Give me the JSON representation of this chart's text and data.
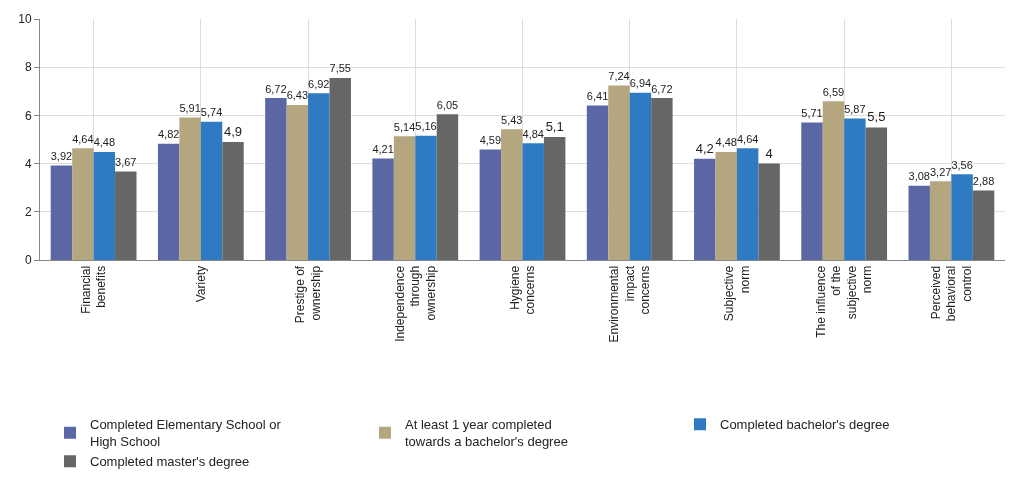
{
  "chart_data": {
    "type": "bar",
    "categories": [
      "Financial benefits",
      "Variety",
      "Prestige of ownership",
      "Independence through ownership",
      "Hygiene concerns",
      "Environmental impact concerns",
      "Subjective norm",
      "The influence of the subjective norm",
      "Perceived behavioral control"
    ],
    "series": [
      {
        "name": "Completed Elementary School or High School",
        "color": "#5b67a5",
        "values": [
          3.92,
          4.82,
          6.72,
          4.21,
          4.59,
          6.41,
          4.2,
          5.71,
          3.08
        ],
        "value_labels": [
          "3,92",
          "4,82",
          "6,72",
          "4,21",
          "4,59",
          "6,41",
          "4,2",
          "5,71",
          "3,08"
        ]
      },
      {
        "name": "At least 1 year completed towards a bachelor's degree",
        "color": "#b4a67f",
        "values": [
          4.64,
          5.91,
          6.43,
          5.14,
          5.43,
          7.24,
          4.48,
          6.59,
          3.27
        ],
        "value_labels": [
          "4,64",
          "5,91",
          "6,43",
          "5,14",
          "5,43",
          "7,24",
          "4,48",
          "6,59",
          "3,27"
        ]
      },
      {
        "name": "Completed bachelor's degree",
        "color": "#2e7bc4",
        "values": [
          4.48,
          5.74,
          6.92,
          5.16,
          4.84,
          6.94,
          4.64,
          5.87,
          3.56
        ],
        "value_labels": [
          "4,48",
          "5,74",
          "6,92",
          "5,16",
          "4,84",
          "6,94",
          "4,64",
          "5,87",
          "3,56"
        ]
      },
      {
        "name": "Completed master's degree",
        "color": "#666666",
        "values": [
          3.67,
          4.9,
          7.55,
          6.05,
          5.1,
          6.72,
          4,
          5.5,
          2.88
        ],
        "value_labels": [
          "3,67",
          "4,9",
          "7,55",
          "6,05",
          "5,1",
          "6,72",
          "4",
          "5,5",
          "2,88"
        ]
      }
    ],
    "ylim": [
      0,
      10
    ],
    "yticks": [
      0,
      2,
      4,
      6,
      8,
      10
    ],
    "grid": true,
    "legend": "bottom"
  }
}
